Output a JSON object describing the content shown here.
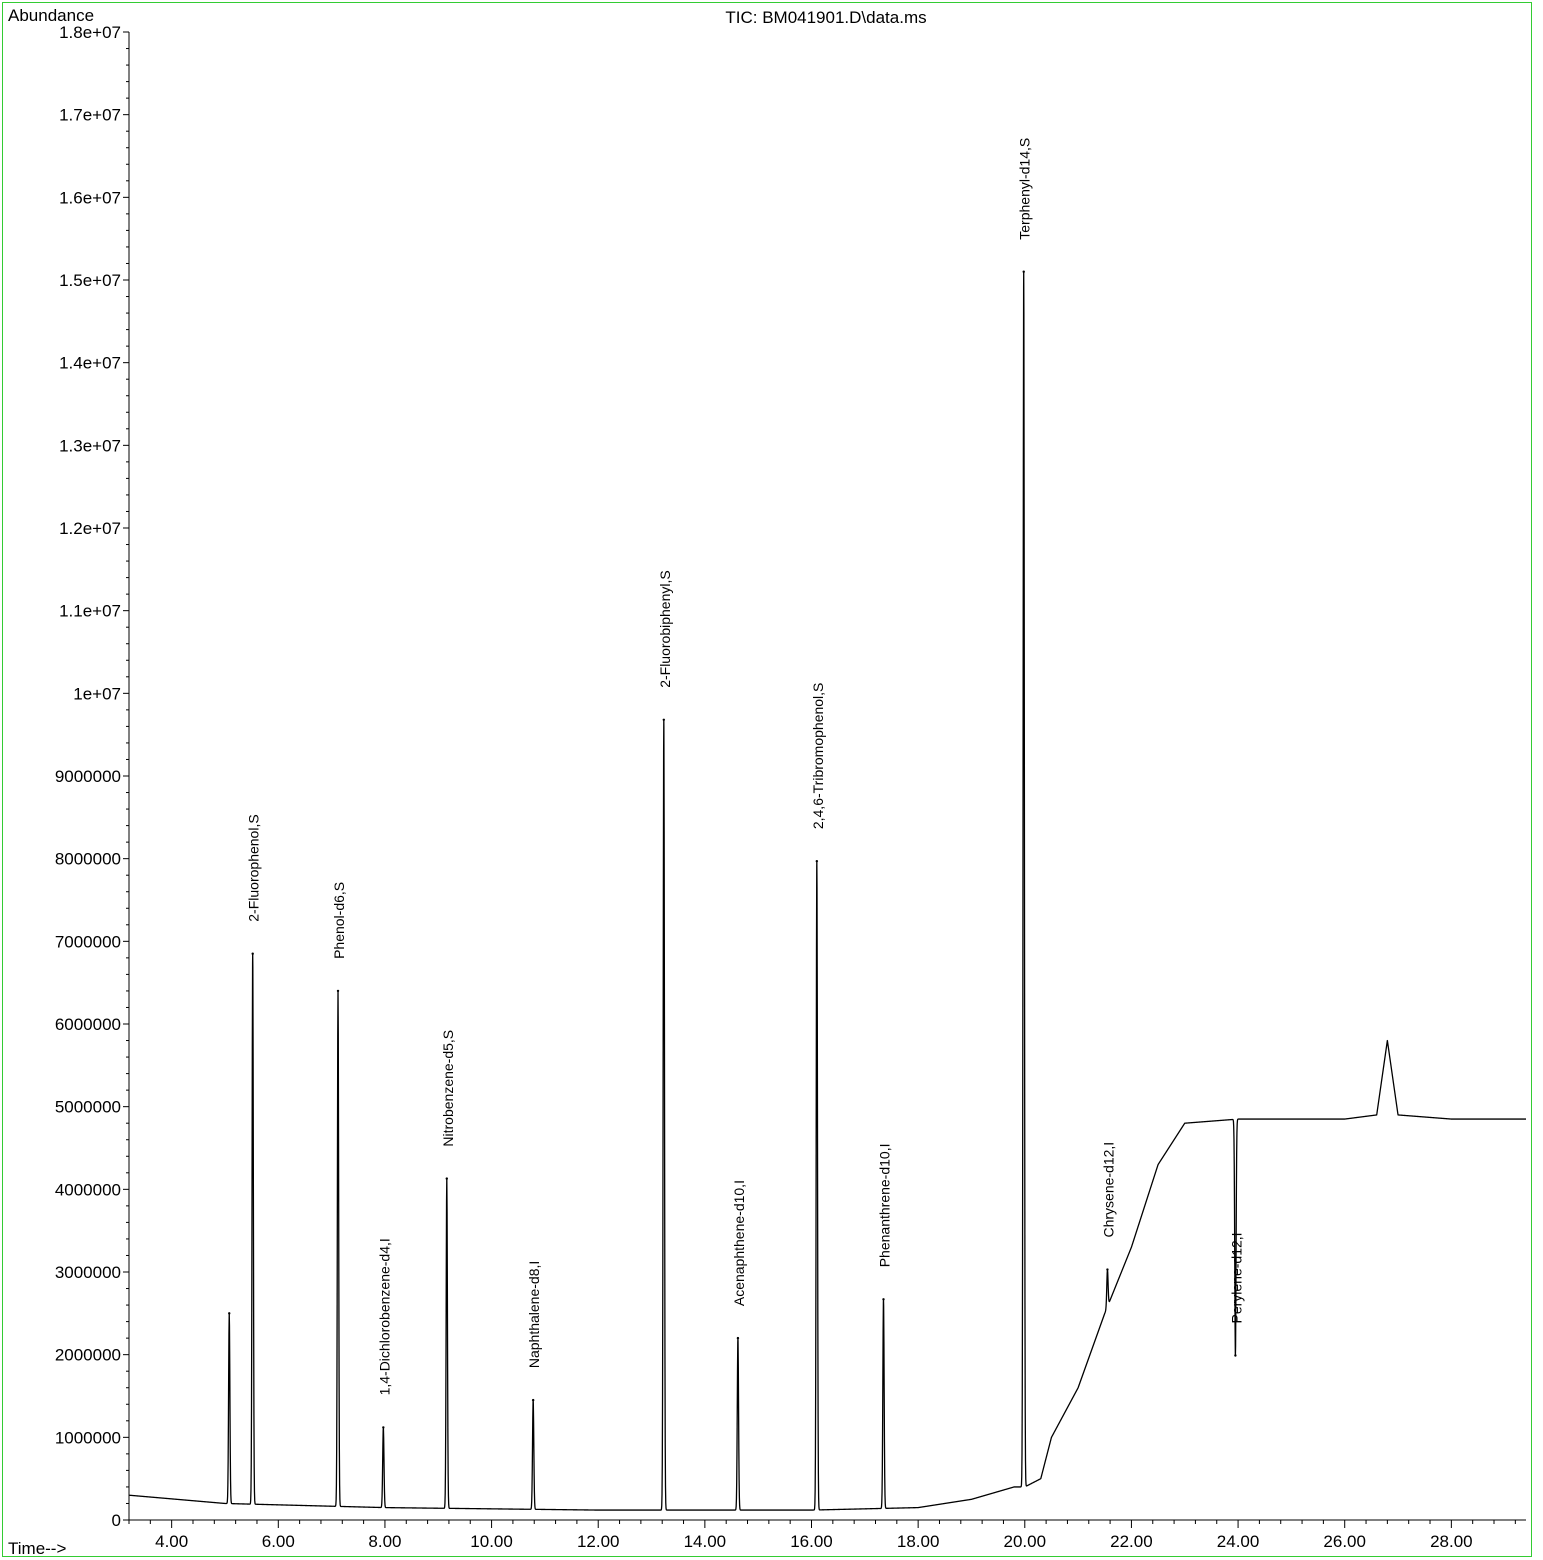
{
  "chart_data": {
    "type": "line",
    "title": "TIC: BM041901.D\\data.ms",
    "ylabel": "Abundance",
    "xlabel": "Time-->",
    "xlim": [
      3.2,
      29.4
    ],
    "ylim": [
      0,
      18000000
    ],
    "grid": false,
    "legend": "none",
    "x_ticks": [
      4,
      6,
      8,
      10,
      12,
      14,
      16,
      18,
      20,
      22,
      24,
      26,
      28
    ],
    "x_tick_labels": [
      "4.00",
      "6.00",
      "8.00",
      "10.00",
      "12.00",
      "14.00",
      "16.00",
      "18.00",
      "20.00",
      "22.00",
      "24.00",
      "26.00",
      "28.00"
    ],
    "y_ticks": [
      0,
      1000000,
      2000000,
      3000000,
      4000000,
      5000000,
      6000000,
      7000000,
      8000000,
      9000000,
      10000000,
      11000000,
      12000000,
      13000000,
      14000000,
      15000000,
      16000000,
      17000000,
      18000000
    ],
    "y_tick_labels": [
      "0",
      "1000000",
      "2000000",
      "3000000",
      "4000000",
      "5000000",
      "6000000",
      "7000000",
      "8000000",
      "9000000",
      "1e+07",
      "1.1e+07",
      "1.2e+07",
      "1.3e+07",
      "1.4e+07",
      "1.5e+07",
      "1.6e+07",
      "1.7e+07",
      "1.8e+07"
    ],
    "baseline": [
      [
        3.2,
        300000
      ],
      [
        5.0,
        200000
      ],
      [
        8.0,
        150000
      ],
      [
        12.0,
        120000
      ],
      [
        16.0,
        120000
      ],
      [
        18.0,
        150000
      ],
      [
        19.0,
        250000
      ],
      [
        19.8,
        400000
      ],
      [
        20.0,
        400000
      ],
      [
        20.3,
        500000
      ],
      [
        20.5,
        1000000
      ],
      [
        21.0,
        1600000
      ],
      [
        21.5,
        2500000
      ],
      [
        22.0,
        3300000
      ],
      [
        22.5,
        4300000
      ],
      [
        23.0,
        4800000
      ],
      [
        24.0,
        4850000
      ],
      [
        25.0,
        4850000
      ],
      [
        26.0,
        4850000
      ],
      [
        26.6,
        4900000
      ],
      [
        26.8,
        5800000
      ],
      [
        27.0,
        4900000
      ],
      [
        28.0,
        4850000
      ],
      [
        29.4,
        4850000
      ]
    ],
    "peaks": [
      {
        "x": 5.08,
        "y": 2500000,
        "label": ""
      },
      {
        "x": 5.52,
        "y": 6850000,
        "label": "2-Fluorophenol,S"
      },
      {
        "x": 7.12,
        "y": 6400000,
        "label": "Phenol-d6,S"
      },
      {
        "x": 7.97,
        "y": 1120000,
        "label": "1,4-Dichlorobenzene-d4,I"
      },
      {
        "x": 9.16,
        "y": 4130000,
        "label": "Nitrobenzene-d5,S"
      },
      {
        "x": 10.78,
        "y": 1450000,
        "label": "Naphthalene-d8,I"
      },
      {
        "x": 13.23,
        "y": 9680000,
        "label": "2-Fluorobiphenyl,S"
      },
      {
        "x": 14.62,
        "y": 2200000,
        "label": "Acenaphthene-d10,I"
      },
      {
        "x": 16.1,
        "y": 7970000,
        "label": "2,4,6-Tribromophenol,S"
      },
      {
        "x": 17.35,
        "y": 2670000,
        "label": "Phenanthrene-d10,I"
      },
      {
        "x": 19.98,
        "y": 15100000,
        "label": "Terphenyl-d14,S"
      },
      {
        "x": 21.55,
        "y": 3030000,
        "label": "Chrysene-d12,I"
      },
      {
        "x": 23.95,
        "y": 1990000,
        "label": "Perylene-d12,I"
      }
    ]
  }
}
